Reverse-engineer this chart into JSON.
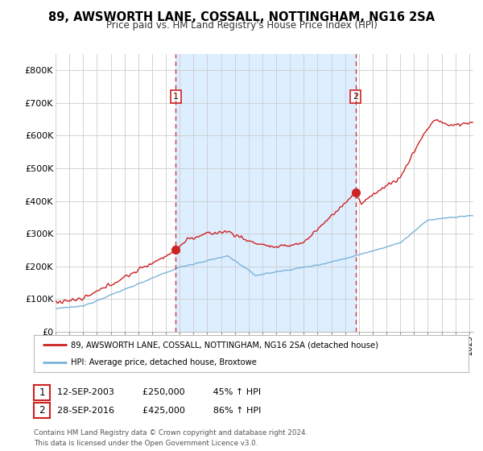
{
  "title": "89, AWSWORTH LANE, COSSALL, NOTTINGHAM, NG16 2SA",
  "subtitle": "Price paid vs. HM Land Registry's House Price Index (HPI)",
  "hpi_color": "#7ab3d8",
  "price_color": "#cc2222",
  "dashed_line_color": "#cc2222",
  "fill_color": "#ddeeff",
  "purchase1_x": 2003.72,
  "purchase1_y": 250000,
  "purchase1_label": "1",
  "purchase2_x": 2016.75,
  "purchase2_y": 425000,
  "purchase2_label": "2",
  "legend_line1": "89, AWSWORTH LANE, COSSALL, NOTTINGHAM, NG16 2SA (detached house)",
  "legend_line2": "HPI: Average price, detached house, Broxtowe",
  "annotation1": "12-SEP-2003          £250,000          45% ↑ HPI",
  "annotation2": "28-SEP-2016          £425,000          86% ↑ HPI",
  "footer": "Contains HM Land Registry data © Crown copyright and database right 2024.\nThis data is licensed under the Open Government Licence v3.0.",
  "background_color": "#ffffff",
  "grid_color": "#cccccc",
  "xlim_start": 1995.0,
  "xlim_end": 2025.3,
  "ylim": [
    0,
    850000
  ],
  "yticks": [
    0,
    100000,
    200000,
    300000,
    400000,
    500000,
    600000,
    700000,
    800000
  ],
  "ytick_labels": [
    "£0",
    "£100K",
    "£200K",
    "£300K",
    "£400K",
    "£500K",
    "£600K",
    "£700K",
    "£800K"
  ]
}
